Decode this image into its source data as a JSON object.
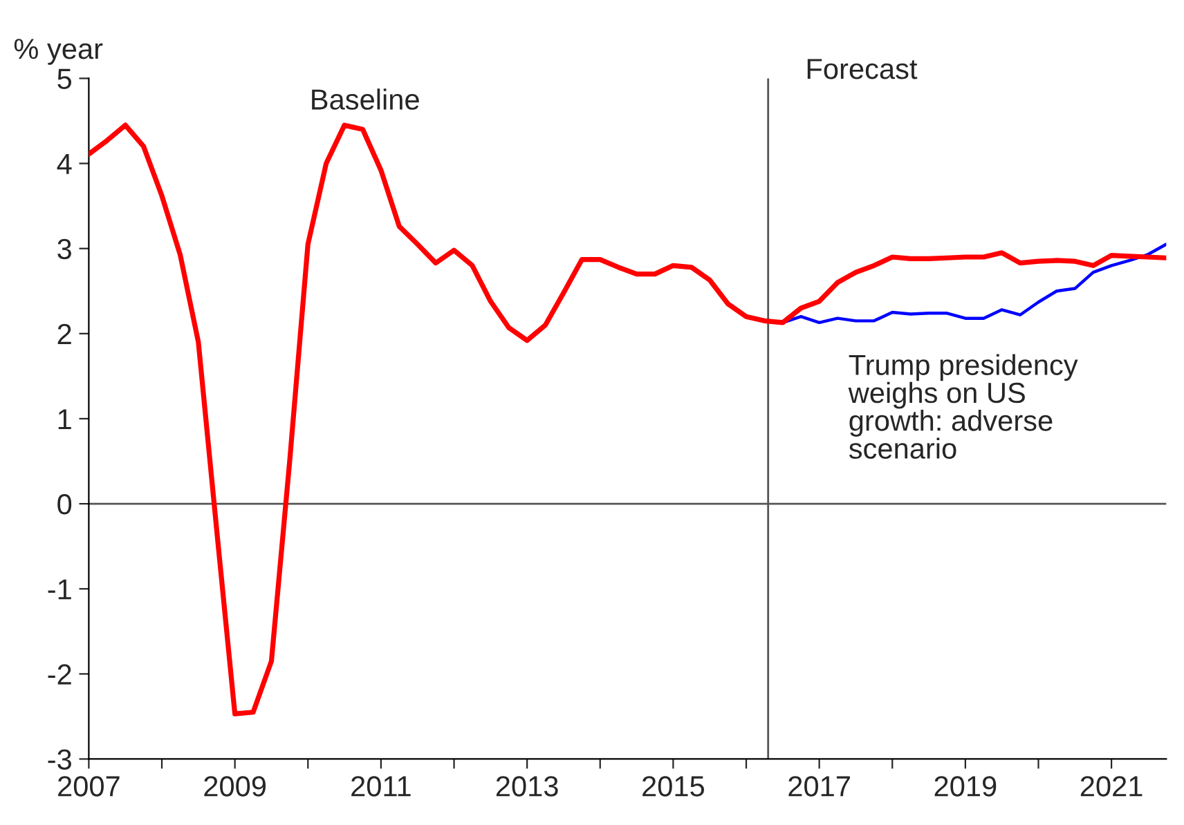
{
  "chart_data": {
    "type": "line",
    "ylabel": "% year",
    "xlim": [
      2007,
      2021.75
    ],
    "xticks": [
      2007,
      {
        "value": 2008,
        "label": null
      },
      2009,
      {
        "value": 2010,
        "label": null
      },
      2011,
      {
        "value": 2012,
        "label": null
      },
      2013,
      {
        "value": 2014,
        "label": null
      },
      2015,
      {
        "value": 2016,
        "label": null
      },
      2017,
      {
        "value": 2018,
        "label": null
      },
      2019,
      {
        "value": 2020,
        "label": null
      },
      2021
    ],
    "ylim": [
      -3,
      5
    ],
    "yticks": [
      -3,
      -2,
      -1,
      0,
      1,
      2,
      3,
      4,
      5
    ],
    "grid": false,
    "legend": false,
    "series": [
      {
        "color": "#0000ff",
        "x": [
          2016.5,
          2016.75,
          2017.0,
          2017.25,
          2017.5,
          2017.75,
          2018.0,
          2018.25,
          2018.5,
          2018.75,
          2019.0,
          2019.25,
          2019.5,
          2019.75,
          2020.0,
          2020.25,
          2020.5,
          2020.75,
          2021.0,
          2021.25,
          2021.5,
          2021.75
        ],
        "values": [
          2.13,
          2.2,
          2.13,
          2.18,
          2.15,
          2.15,
          2.25,
          2.23,
          2.24,
          2.24,
          2.18,
          2.18,
          2.28,
          2.22,
          2.37,
          2.5,
          2.53,
          2.72,
          2.8,
          2.86,
          2.93,
          3.05
        ]
      },
      {
        "color": "#ff0000",
        "x": [
          2007.0,
          2007.25,
          2007.5,
          2007.75,
          2008.0,
          2008.25,
          2008.5,
          2008.75,
          2009.0,
          2009.25,
          2009.5,
          2009.75,
          2010.0,
          2010.25,
          2010.5,
          2010.75,
          2011.0,
          2011.25,
          2011.5,
          2011.75,
          2012.0,
          2012.25,
          2012.5,
          2012.75,
          2013.0,
          2013.25,
          2013.5,
          2013.75,
          2014.0,
          2014.25,
          2014.5,
          2014.75,
          2015.0,
          2015.25,
          2015.5,
          2015.75,
          2016.0,
          2016.25,
          2016.5,
          2016.75,
          2017.0,
          2017.25,
          2017.5,
          2017.75,
          2018.0,
          2018.25,
          2018.5,
          2018.75,
          2019.0,
          2019.25,
          2019.5,
          2019.75,
          2020.0,
          2020.25,
          2020.5,
          2020.75,
          2021.0,
          2021.25,
          2021.5,
          2021.75
        ],
        "values": [
          4.11,
          4.27,
          4.45,
          4.2,
          3.62,
          2.93,
          1.9,
          -0.3,
          -2.47,
          -2.45,
          -1.85,
          0.5,
          3.05,
          4.0,
          4.45,
          4.4,
          3.92,
          3.26,
          3.05,
          2.83,
          2.98,
          2.8,
          2.38,
          2.07,
          1.92,
          2.1,
          2.48,
          2.87,
          2.87,
          2.78,
          2.7,
          2.7,
          2.8,
          2.78,
          2.63,
          2.35,
          2.2,
          2.15,
          2.13,
          2.3,
          2.38,
          2.6,
          2.72,
          2.8,
          2.9,
          2.88,
          2.88,
          2.89,
          2.9,
          2.9,
          2.95,
          2.83,
          2.85,
          2.86,
          2.85,
          2.8,
          2.92,
          2.91,
          2.9,
          2.89
        ]
      }
    ],
    "ref_lines": [
      {
        "axis": "y",
        "value": 0,
        "color": "#555555"
      },
      {
        "axis": "x",
        "value": 2016.3,
        "color": "#555555"
      }
    ],
    "annotations": [
      "Baseline",
      "Forecast",
      "Trump presidency\nweighs on US\ngrowth: adverse\nscenario"
    ]
  }
}
